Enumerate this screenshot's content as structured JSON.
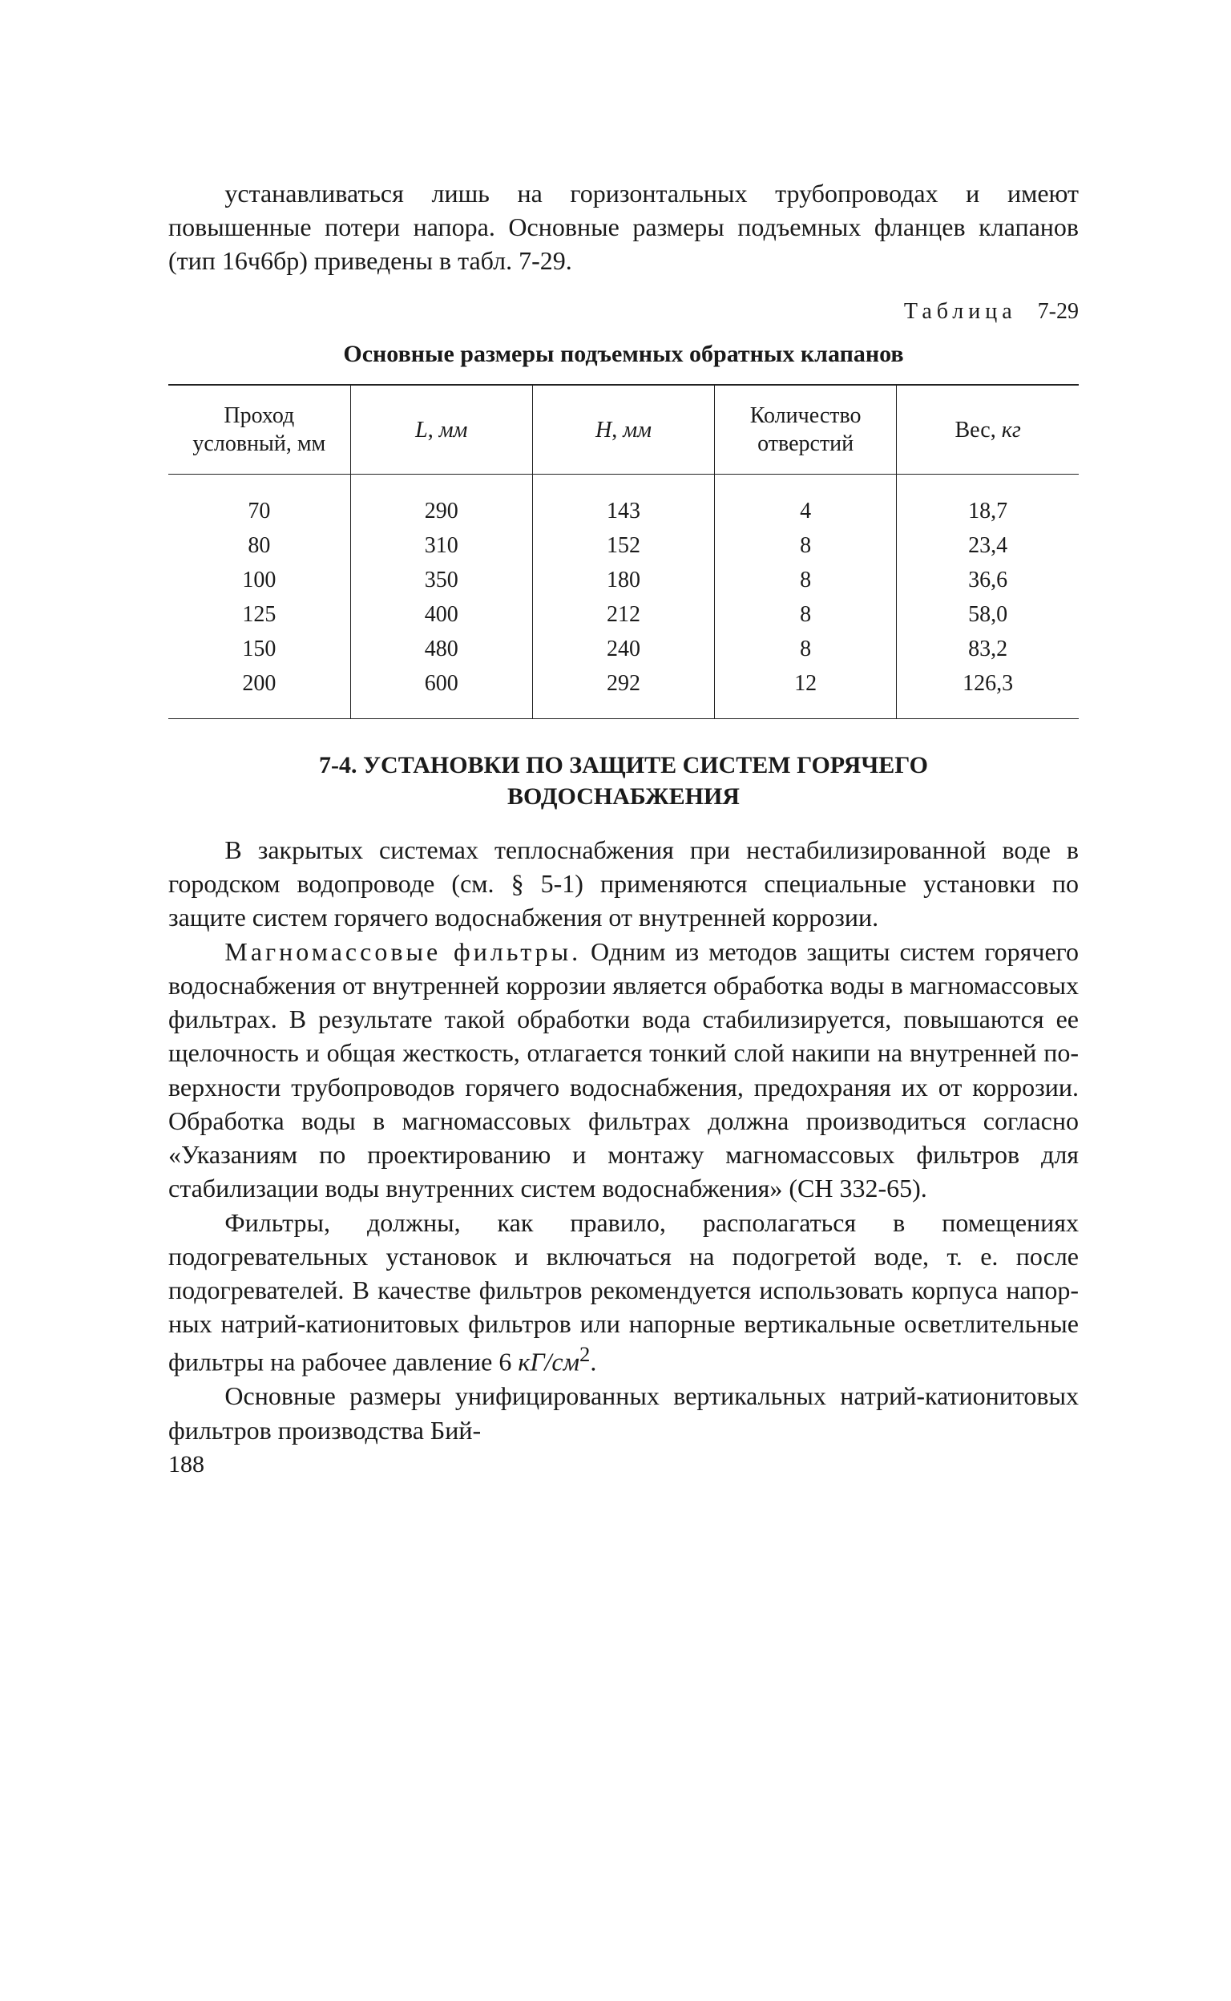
{
  "intro_para": "устанавливаться лишь на горизонтальных трубопрово­дах и имеют повышенные потери напора. Основные размеры подъемных фланцев клапанов (тип 16ч6бр) приведены в табл. 7-29.",
  "table_label_word": "Таблица",
  "table_label_num": "7-29",
  "table_title": "Основные размеры подъемных обратных клапанов",
  "table": {
    "headers": [
      "Проход условный, мм",
      "L, мм",
      "H, мм",
      "Количество отверстий",
      "Вес, кг"
    ],
    "rows": [
      [
        "70",
        "290",
        "143",
        "4",
        "18,7"
      ],
      [
        "80",
        "310",
        "152",
        "8",
        "23,4"
      ],
      [
        "100",
        "350",
        "180",
        "8",
        "36,6"
      ],
      [
        "125",
        "400",
        "212",
        "8",
        "58,0"
      ],
      [
        "150",
        "480",
        "240",
        "8",
        "83,2"
      ],
      [
        "200",
        "600",
        "292",
        "12",
        "126,3"
      ]
    ]
  },
  "section_head_1": "7-4. УСТАНОВКИ ПО ЗАЩИТЕ СИСТЕМ ГОРЯЧЕГО",
  "section_head_2": "ВОДОСНАБЖЕНИЯ",
  "body_para_1": "В закрытых системах теплоснабжения при нестаби­лизированной воде в городском водопроводе (см. § 5-1) применяются специальные установки по защите систем горячего водоснабжения от внутренней коррозии.",
  "body_para_2_lead": "Магномассовые фильтры.",
  "body_para_2_rest": " Одним из методов защиты систем горячего водоснабжения от внутренней коррозии является обработка воды в магномассовых фильтрах. В результате такой обработки вода стабили­зируется, повышаются ее щелочность и общая жест­кость, отлагается тонкий слой накипи на внутренней по­верхности трубопроводов горячего водоснабжения, предохраняя их от коррозии. Обработка воды в магно­массовых фильтрах должна производиться согласно «Указаниям по проектированию и монтажу магномассо­вых фильтров для стабилизации воды внутренних систем водоснабжения» (СН 332-65).",
  "body_para_3": "Фильтры, должны, как правило, располагаться в по­мещениях подогревательных установок и включаться на подогретой воде, т. е. после подогревателей. В качестве фильтров рекомендуется использовать корпуса напор­ных натрий-катионитовых фильтров или напорные вер­тикальные осветлительные фильтры на рабочее давле­ние 6 кГ/см².",
  "body_para_4": "Основные размеры унифицированных вертикальных натрий-катионитовых фильтров производства Бий-",
  "page_number": "188"
}
